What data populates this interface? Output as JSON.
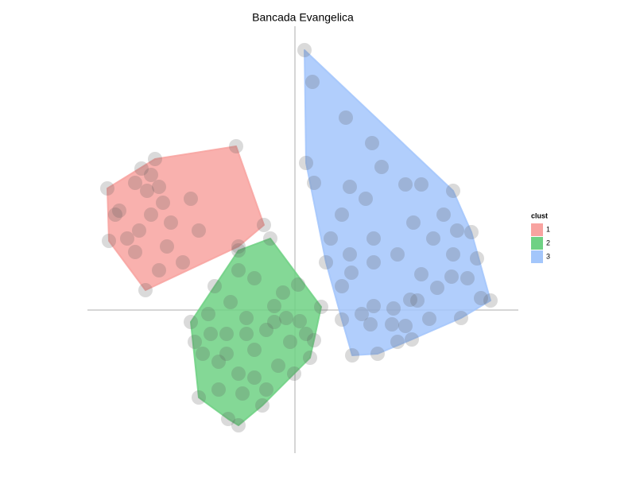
{
  "chart_data": {
    "type": "cluster_scatter",
    "title": "Bancada Evangelica",
    "legend_title": "clust",
    "legend": "right",
    "zero_lines": true,
    "point_color": "#555555",
    "xlim": [
      -2.61,
      2.81
    ],
    "ylim": [
      -1.8,
      3.57
    ],
    "series": [
      {
        "name": "1",
        "color": "#f8a3a0",
        "x": [
          -0.74,
          -1.76,
          -1.93,
          -2.36,
          -2.21,
          -2.01,
          -1.86,
          -1.71,
          -1.81,
          -1.96,
          -2.01,
          -1.71,
          -1.88,
          -2.34,
          -2.11,
          -1.61,
          -1.21,
          -1.31,
          -0.39,
          -0.71,
          -1.41,
          -1.56,
          -2.26,
          -1.81,
          -1.66
        ],
        "y": [
          2.06,
          1.9,
          1.78,
          1.53,
          1.25,
          1.6,
          1.5,
          1.55,
          1.2,
          1.0,
          0.73,
          0.5,
          0.25,
          0.87,
          0.9,
          0.8,
          1.0,
          1.4,
          1.07,
          0.8,
          0.6,
          1.1,
          1.2,
          1.7,
          1.35
        ]
      },
      {
        "name": "2",
        "color": "#6fd184",
        "x": [
          -0.71,
          -0.31,
          0.04,
          -0.15,
          0.33,
          0.14,
          0.19,
          -0.01,
          -0.36,
          -0.71,
          -0.84,
          -0.96,
          -1.21,
          -1.26,
          -1.31,
          -1.09,
          -0.86,
          -0.61,
          -0.36,
          -0.26,
          -0.11,
          0.06,
          0.24,
          -0.06,
          -0.21,
          -0.51,
          -0.71,
          -0.96,
          -1.16,
          -0.81,
          -0.51,
          -0.71,
          -1.01,
          -0.66,
          -0.41,
          -0.26,
          -0.61,
          -0.51,
          -1.06,
          -0.86
        ],
        "y": [
          0.75,
          0.9,
          0.32,
          0.22,
          0.04,
          -0.3,
          -0.6,
          -0.8,
          -1.0,
          -1.45,
          -1.37,
          -1.0,
          -1.1,
          -0.4,
          -0.15,
          -0.05,
          -0.3,
          -0.3,
          -0.25,
          -0.15,
          -0.1,
          -0.14,
          -0.38,
          -0.4,
          -0.7,
          -0.85,
          -0.8,
          -0.65,
          -0.55,
          0.1,
          0.4,
          0.5,
          0.3,
          -1.05,
          -1.2,
          0.05,
          -0.1,
          -0.5,
          -0.3,
          -0.55
        ]
      },
      {
        "name": "3",
        "color": "#a3c6fb",
        "x": [
          0.12,
          0.22,
          0.64,
          0.97,
          0.14,
          0.24,
          0.69,
          0.89,
          1.39,
          1.59,
          1.87,
          1.99,
          2.22,
          2.04,
          1.49,
          0.99,
          0.69,
          0.45,
          0.71,
          0.59,
          0.99,
          1.29,
          1.59,
          1.79,
          1.97,
          2.17,
          2.34,
          2.46,
          2.09,
          1.69,
          1.54,
          1.45,
          1.24,
          0.99,
          0.84,
          0.59,
          0.95,
          1.22,
          1.39,
          1.29,
          1.47,
          1.04,
          0.72,
          1.99,
          1.74,
          1.09,
          0.59,
          0.39,
          2.29
        ],
        "y": [
          3.27,
          2.87,
          2.42,
          2.1,
          1.85,
          1.6,
          1.55,
          1.4,
          1.58,
          1.58,
          1.2,
          1.5,
          0.98,
          1.0,
          1.1,
          0.9,
          0.7,
          0.9,
          0.47,
          0.3,
          0.6,
          0.7,
          0.45,
          0.28,
          0.42,
          0.4,
          0.15,
          0.12,
          -0.1,
          -0.11,
          0.12,
          0.13,
          0.02,
          0.05,
          -0.05,
          -0.12,
          -0.18,
          -0.18,
          -0.2,
          -0.4,
          -0.37,
          -0.55,
          -0.57,
          0.7,
          0.9,
          1.8,
          1.2,
          0.6,
          0.65
        ]
      }
    ]
  }
}
